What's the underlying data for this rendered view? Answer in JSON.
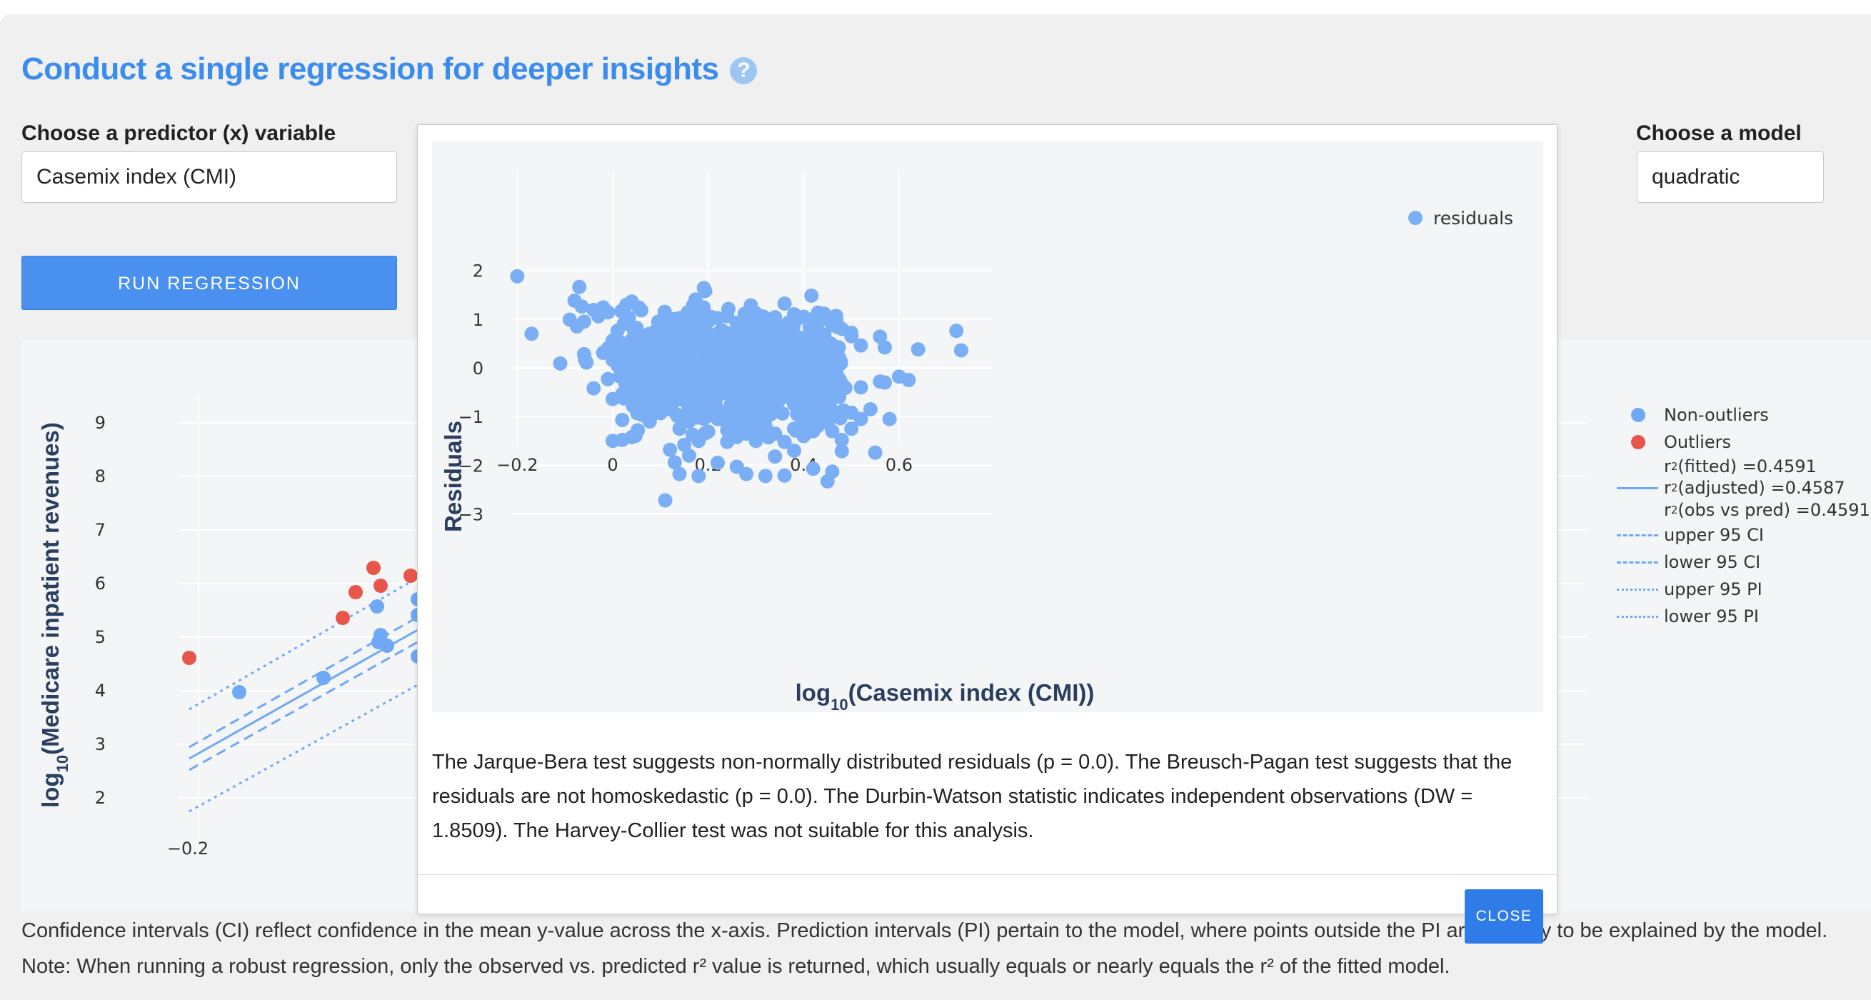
{
  "header": {
    "title": "Conduct a single regression for deeper insights",
    "help_icon": "?"
  },
  "predictor": {
    "label": "Choose a predictor (x) variable",
    "value": "Casemix index (CMI)"
  },
  "model": {
    "label": "Choose a model",
    "value": "quadratic"
  },
  "run_button": "RUN REGRESSION",
  "background_chart": {
    "y_title_main": "log",
    "y_title_sub": "10",
    "y_title_rest": "(Medicare inpatient revenues)",
    "y_ticks": [
      "9",
      "8",
      "7",
      "6",
      "5",
      "4",
      "3",
      "2"
    ],
    "x_ticks": [
      "−0.2"
    ],
    "legend": {
      "non_outliers": "Non-outliers",
      "outliers": "Outliers",
      "r2_fitted": "r",
      "r2_fitted_val": " (fitted) =0.4591",
      "r2_adjusted_val": " (adjusted) =0.4587",
      "r2_obs_val": " (obs vs pred) =0.4591",
      "r2_sup": "2",
      "upper_ci": "upper 95 CI",
      "lower_ci": "lower 95 CI",
      "upper_pi": "upper 95 PI",
      "lower_pi": "lower 95 PI"
    },
    "colors": {
      "non_outlier": "#6fa8f5",
      "outlier": "#e8554a"
    }
  },
  "bottom_text": "Confidence intervals (CI) reflect confidence in the mean y-value across the x-axis. Prediction intervals (PI) pertain to the model, where points outside the PI are unlikely to be explained by the model. Note: When running a robust regression, only the observed vs. predicted r² value is returned, which usually equals or nearly equals the r² of the fitted model.",
  "modal": {
    "description": "The Jarque-Bera test suggests non-normally distributed residuals (p = 0.0). The Breusch-Pagan test suggests that the residuals are not homoskedastic (p = 0.0). The Durbin-Watson statistic indicates independent observations (DW = 1.8509). The Harvey-Collier test was not suitable for this analysis.",
    "close_button": "CLOSE"
  },
  "chart_data": {
    "type": "scatter",
    "xlabel_main": "log",
    "xlabel_sub": "10",
    "xlabel_rest": "(Casemix index (CMI))",
    "ylabel": "Residuals",
    "xlim": [
      -0.27,
      0.8
    ],
    "ylim": [
      -3.2,
      2.25
    ],
    "x_ticks": [
      -0.2,
      0,
      0.2,
      0.4,
      0.6
    ],
    "x_tick_labels": [
      "−0.2",
      "0",
      "0.2",
      "0.4",
      "0.6"
    ],
    "y_ticks": [
      2,
      1,
      0,
      -1,
      -2,
      -3
    ],
    "y_tick_labels": [
      "2",
      "1",
      "0",
      "−1",
      "−2",
      "−3"
    ],
    "grid": true,
    "legend_position": "top-right",
    "series": [
      {
        "name": "residuals",
        "color": "#7aaef5",
        "points": [
          [
            -0.2,
            1.88
          ],
          [
            -0.17,
            0.7
          ],
          [
            -0.11,
            0.09
          ],
          [
            -0.09,
            0.99
          ],
          [
            -0.08,
            1.38
          ],
          [
            -0.075,
            0.85
          ],
          [
            -0.07,
            1.66
          ],
          [
            -0.065,
            1.26
          ],
          [
            -0.06,
            0.95
          ],
          [
            -0.06,
            0.28
          ],
          [
            -0.058,
            0.17
          ],
          [
            -0.055,
            0.11
          ],
          [
            -0.04,
            1.19
          ],
          [
            -0.03,
            1.06
          ],
          [
            -0.02,
            1.24
          ],
          [
            -0.02,
            0.31
          ],
          [
            -0.01,
            1.14
          ],
          [
            -0.01,
            -0.23
          ],
          [
            0.0,
            0.56
          ],
          [
            0.0,
            0.16
          ],
          [
            0.01,
            0.76
          ],
          [
            0.01,
            0.05
          ],
          [
            0.02,
            -0.12
          ],
          [
            -0.01,
            0.4
          ],
          [
            -0.04,
            -0.42
          ],
          [
            0.04,
            1.36
          ],
          [
            0.05,
            0.82
          ],
          [
            0.06,
            0.42
          ],
          [
            0.07,
            0.06
          ],
          [
            0.08,
            -0.5
          ],
          [
            0.09,
            -0.72
          ],
          [
            0.1,
            -0.93
          ],
          [
            0.11,
            -2.72
          ],
          [
            0.12,
            -1.68
          ],
          [
            0.13,
            -1.94
          ],
          [
            0.14,
            -2.18
          ],
          [
            0.15,
            -1.58
          ],
          [
            0.16,
            -1.8
          ],
          [
            0.18,
            -2.22
          ],
          [
            0.2,
            -1.31
          ],
          [
            0.22,
            -1.95
          ],
          [
            0.24,
            -1.52
          ],
          [
            0.26,
            -2.03
          ],
          [
            0.28,
            -2.18
          ],
          [
            0.3,
            -1.25
          ],
          [
            0.32,
            -2.22
          ],
          [
            0.34,
            -1.82
          ],
          [
            0.36,
            -2.21
          ],
          [
            0.38,
            -1.7
          ],
          [
            0.4,
            -1.05
          ],
          [
            0.42,
            -2.07
          ],
          [
            0.45,
            -2.33
          ],
          [
            0.46,
            -2.13
          ],
          [
            0.48,
            -1.71
          ],
          [
            0.5,
            -0.92
          ],
          [
            0.52,
            -0.4
          ],
          [
            0.55,
            -1.74
          ],
          [
            0.58,
            -1.05
          ],
          [
            0.56,
            -0.28
          ],
          [
            0.57,
            -0.3
          ],
          [
            0.6,
            -0.18
          ],
          [
            0.62,
            -0.25
          ],
          [
            0.64,
            0.38
          ],
          [
            0.72,
            0.76
          ],
          [
            0.73,
            0.36
          ],
          [
            0.56,
            0.64
          ],
          [
            0.57,
            0.42
          ],
          [
            0.5,
            0.72
          ],
          [
            0.52,
            0.46
          ],
          [
            0.45,
            0.02
          ],
          [
            0.47,
            -0.15
          ],
          [
            0.48,
            -0.33
          ],
          [
            0.0,
            -0.64
          ],
          [
            0.02,
            -1.07
          ],
          [
            0.0,
            -1.5
          ],
          [
            0.02,
            -1.48
          ],
          [
            0.04,
            -1.42
          ],
          [
            0.06,
            -0.58
          ],
          [
            0.08,
            -0.18
          ],
          [
            0.1,
            -0.32
          ],
          [
            0.12,
            -0.85
          ],
          [
            0.14,
            -1.25
          ],
          [
            0.16,
            -1.1
          ],
          [
            0.18,
            -1.5
          ],
          [
            0.2,
            -0.98
          ],
          [
            0.22,
            -1.05
          ],
          [
            0.24,
            -1.28
          ],
          [
            0.26,
            -1.42
          ],
          [
            0.28,
            -1.35
          ],
          [
            0.3,
            -1.5
          ],
          [
            0.32,
            -1.2
          ],
          [
            0.34,
            -1.35
          ],
          [
            0.36,
            -1.52
          ],
          [
            0.38,
            -1.25
          ],
          [
            0.4,
            -1.4
          ],
          [
            0.42,
            -1.3
          ],
          [
            0.44,
            -1.12
          ],
          [
            0.46,
            -1.3
          ],
          [
            0.48,
            -1.48
          ],
          [
            0.5,
            -1.25
          ],
          [
            0.52,
            -1.05
          ],
          [
            0.54,
            -0.85
          ],
          [
            0.1,
            0.9
          ],
          [
            0.12,
            0.75
          ],
          [
            0.14,
            1.02
          ],
          [
            0.16,
            0.88
          ],
          [
            0.18,
            1.05
          ],
          [
            0.2,
            0.95
          ],
          [
            0.22,
            1.02
          ],
          [
            0.24,
            1.06
          ],
          [
            0.26,
            0.92
          ],
          [
            0.28,
            1.08
          ],
          [
            0.3,
            1.12
          ],
          [
            0.32,
            0.98
          ],
          [
            0.34,
            1.04
          ],
          [
            0.36,
            1.32
          ],
          [
            0.38,
            1.1
          ],
          [
            0.4,
            1.05
          ],
          [
            0.42,
            1.0
          ],
          [
            0.44,
            1.06
          ],
          [
            0.46,
            0.88
          ],
          [
            0.48,
            0.8
          ],
          [
            0.5,
            0.65
          ],
          [
            0.3,
            -0.6
          ],
          [
            0.2,
            -0.5
          ],
          [
            0.4,
            -0.55
          ],
          [
            0.15,
            0.3
          ],
          [
            0.25,
            0.45
          ],
          [
            0.35,
            0.35
          ],
          [
            0.18,
            -0.2
          ],
          [
            0.28,
            -0.25
          ],
          [
            0.38,
            -0.2
          ],
          [
            0.05,
            0.25
          ],
          [
            0.08,
            0.55
          ],
          [
            0.43,
            0.55
          ],
          [
            0.41,
            0.25
          ],
          [
            0.33,
            0.62
          ],
          [
            0.23,
            0.6
          ],
          [
            0.13,
            -0.4
          ],
          [
            0.27,
            0.15
          ],
          [
            0.37,
            0.05
          ],
          [
            0.07,
            -0.05
          ],
          [
            0.45,
            -0.5
          ],
          [
            0.03,
            0.18
          ],
          [
            0.11,
            0.12
          ],
          [
            0.19,
            0.22
          ],
          [
            0.29,
            -0.02
          ],
          [
            0.39,
            0.18
          ],
          [
            0.21,
            -0.35
          ],
          [
            0.31,
            0.28
          ],
          [
            0.09,
            0.38
          ],
          [
            0.17,
            0.48
          ],
          [
            0.26,
            -0.48
          ],
          [
            0.35,
            -0.42
          ],
          [
            0.44,
            0.32
          ],
          [
            0.14,
            0.05
          ],
          [
            0.24,
            0.08
          ],
          [
            0.34,
            -0.08
          ],
          [
            0.06,
            -0.25
          ],
          [
            0.46,
            0.12
          ],
          [
            0.12,
            -0.62
          ],
          [
            0.22,
            0.35
          ],
          [
            0.32,
            0.45
          ],
          [
            0.42,
            -0.38
          ],
          [
            0.16,
            -0.72
          ],
          [
            0.3,
            -0.85
          ],
          [
            0.38,
            -0.75
          ],
          [
            0.2,
            0.7
          ],
          [
            0.28,
            0.78
          ],
          [
            0.36,
            0.72
          ],
          [
            0.1,
            -0.05
          ],
          [
            0.25,
            -0.15
          ],
          [
            0.4,
            0.4
          ],
          [
            0.33,
            0.1
          ]
        ]
      }
    ]
  }
}
